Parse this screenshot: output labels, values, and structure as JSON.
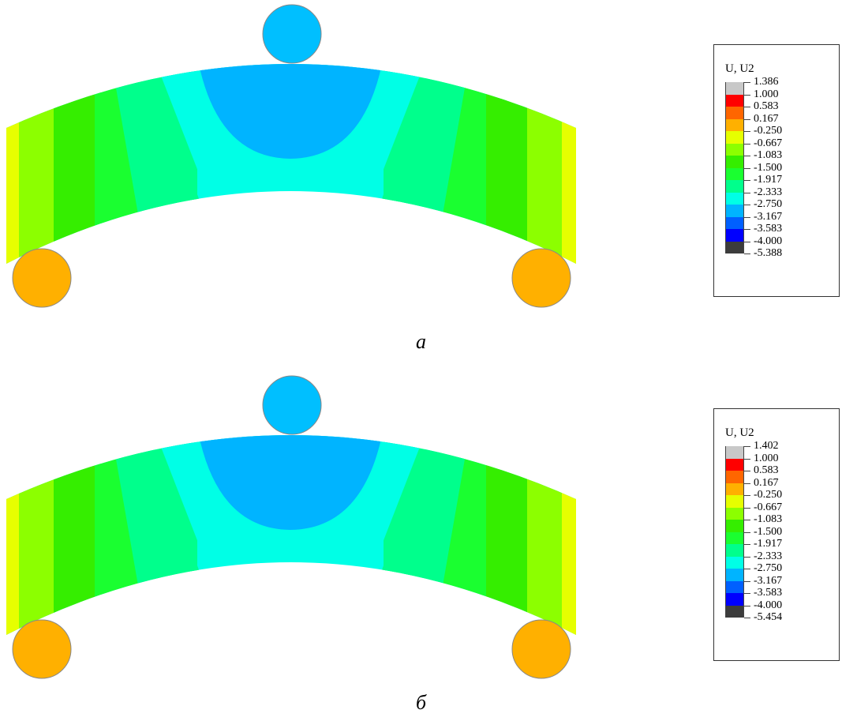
{
  "figures": [
    {
      "id": "a",
      "label": "a",
      "legend": {
        "title": "U, U2",
        "values": [
          "1.386",
          "1.000",
          "0.583",
          "0.167",
          "-0.250",
          "-0.667",
          "-1.083",
          "-1.500",
          "-1.917",
          "-2.333",
          "-2.750",
          "-3.167",
          "-3.583",
          "-4.000",
          "-5.388"
        ]
      }
    },
    {
      "id": "b",
      "label": "б",
      "legend": {
        "title": "U, U2",
        "values": [
          "1.402",
          "1.000",
          "0.583",
          "0.167",
          "-0.250",
          "-0.667",
          "-1.083",
          "-1.500",
          "-1.917",
          "-2.333",
          "-2.750",
          "-3.167",
          "-3.583",
          "-4.000",
          "-5.454"
        ]
      }
    }
  ],
  "contour_colors": [
    "#c8c8c8",
    "#ff0000",
    "#ff6600",
    "#ffb000",
    "#e6ff00",
    "#8cff00",
    "#35ee00",
    "#1aff30",
    "#00ff8c",
    "#00ffe6",
    "#00b4ff",
    "#0060ff",
    "#0000ff",
    "#3c3c3c"
  ],
  "support_color": "#ffb000",
  "load_color": "#00bfff"
}
